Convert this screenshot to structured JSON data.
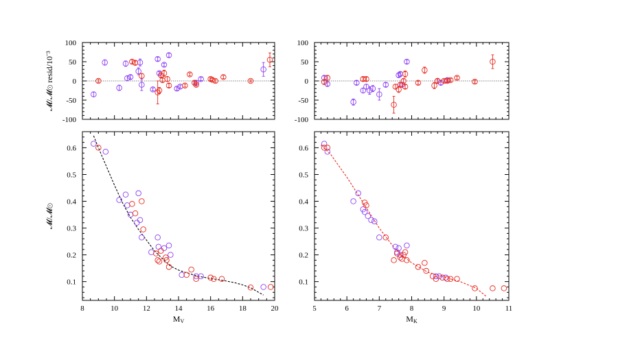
{
  "chart_data": [
    {
      "id": "resid_v",
      "type": "scatter",
      "title": "",
      "xlabel": "",
      "ylabel": "𝓜/𝓜⊙ resid/10⁻³",
      "xlim": [
        8,
        20
      ],
      "ylim": [
        -100,
        100
      ],
      "yticks": [
        100,
        50,
        0,
        -50,
        -100
      ],
      "xticks": [
        8,
        10,
        12,
        14,
        16,
        18,
        20
      ],
      "show_x_ticklabels": false,
      "zero_line": true,
      "series": [
        {
          "name": "purple",
          "color": "#8a3ff5",
          "points": [
            [
              8.7,
              -35,
              6
            ],
            [
              9.4,
              48,
              7
            ],
            [
              10.3,
              -18,
              7
            ],
            [
              10.7,
              45,
              7
            ],
            [
              10.8,
              7,
              6
            ],
            [
              11.0,
              10,
              5
            ],
            [
              11.5,
              25,
              9
            ],
            [
              11.6,
              48,
              9
            ],
            [
              11.7,
              -10,
              15
            ],
            [
              12.4,
              -22,
              4
            ],
            [
              12.7,
              57,
              5
            ],
            [
              12.8,
              20,
              4
            ],
            [
              13.1,
              42,
              4
            ],
            [
              13.4,
              67,
              5
            ],
            [
              13.9,
              -20,
              4
            ],
            [
              14.1,
              -15,
              4
            ],
            [
              15.1,
              -5,
              5
            ],
            [
              15.4,
              5,
              4
            ],
            [
              19.3,
              30,
              18
            ]
          ]
        },
        {
          "name": "red",
          "color": "#e8281e",
          "points": [
            [
              9.0,
              0,
              4
            ],
            [
              11.1,
              50,
              5
            ],
            [
              11.3,
              47,
              5
            ],
            [
              11.7,
              13,
              6
            ],
            [
              12.7,
              -30,
              30
            ],
            [
              12.8,
              -25,
              8
            ],
            [
              12.9,
              15,
              5
            ],
            [
              13.0,
              2,
              5
            ],
            [
              13.1,
              20,
              8
            ],
            [
              13.3,
              5,
              6
            ],
            [
              13.4,
              -12,
              5
            ],
            [
              14.4,
              -12,
              4
            ],
            [
              14.7,
              17,
              4
            ],
            [
              15.0,
              -5,
              4
            ],
            [
              15.1,
              -10,
              4
            ],
            [
              16.0,
              5,
              4
            ],
            [
              16.1,
              3,
              4
            ],
            [
              16.3,
              0,
              4
            ],
            [
              16.8,
              10,
              4
            ],
            [
              18.5,
              0,
              3
            ],
            [
              19.7,
              55,
              18
            ]
          ]
        }
      ]
    },
    {
      "id": "resid_k",
      "type": "scatter",
      "title": "",
      "xlabel": "",
      "ylabel": "",
      "xlim": [
        5,
        11
      ],
      "ylim": [
        -100,
        100
      ],
      "yticks": [
        100,
        50,
        0,
        -50,
        -100
      ],
      "xticks": [
        5,
        6,
        7,
        8,
        9,
        10,
        11
      ],
      "show_x_ticklabels": false,
      "zero_line": true,
      "series": [
        {
          "name": "purple",
          "color": "#8a3ff5",
          "points": [
            [
              5.3,
              8,
              5
            ],
            [
              5.4,
              -8,
              5
            ],
            [
              6.2,
              -55,
              8
            ],
            [
              6.3,
              -5,
              5
            ],
            [
              6.5,
              -25,
              6
            ],
            [
              6.6,
              -15,
              6
            ],
            [
              6.7,
              -25,
              10
            ],
            [
              6.8,
              -20,
              8
            ],
            [
              7.0,
              -35,
              15
            ],
            [
              7.2,
              -10,
              5
            ],
            [
              7.6,
              15,
              5
            ],
            [
              7.65,
              18,
              5
            ],
            [
              7.7,
              -10,
              5
            ],
            [
              7.85,
              50,
              5
            ],
            [
              8.8,
              0,
              5
            ],
            [
              8.9,
              -5,
              5
            ],
            [
              9.1,
              2,
              5
            ]
          ]
        },
        {
          "name": "red",
          "color": "#e8281e",
          "points": [
            [
              5.3,
              -3,
              5
            ],
            [
              5.4,
              8,
              6
            ],
            [
              6.5,
              5,
              5
            ],
            [
              6.6,
              5,
              5
            ],
            [
              7.45,
              -62,
              22
            ],
            [
              7.5,
              -15,
              6
            ],
            [
              7.6,
              -22,
              8
            ],
            [
              7.65,
              -10,
              5
            ],
            [
              7.75,
              0,
              5
            ],
            [
              7.8,
              18,
              8
            ],
            [
              7.8,
              -15,
              5
            ],
            [
              8.2,
              -5,
              4
            ],
            [
              8.4,
              28,
              8
            ],
            [
              8.7,
              -12,
              8
            ],
            [
              8.8,
              0,
              5
            ],
            [
              9.0,
              0,
              4
            ],
            [
              9.1,
              0,
              4
            ],
            [
              9.2,
              2,
              4
            ],
            [
              9.4,
              8,
              4
            ],
            [
              9.95,
              -2,
              4
            ],
            [
              10.5,
              50,
              18
            ]
          ]
        }
      ]
    },
    {
      "id": "mass_v",
      "type": "scatter",
      "title": "",
      "xlabel": "Mv",
      "ylabel": "𝓜/𝓜⊙",
      "xlim": [
        8,
        20
      ],
      "ylim": [
        0.03,
        0.66
      ],
      "yticks": [
        0.6,
        0.5,
        0.4,
        0.3,
        0.2,
        0.1
      ],
      "xticks": [
        8,
        10,
        12,
        14,
        16,
        18,
        20
      ],
      "show_x_ticklabels": true,
      "curve_color": "#000000",
      "curve": [
        [
          8.7,
          0.645
        ],
        [
          9.0,
          0.6
        ],
        [
          9.5,
          0.53
        ],
        [
          10.0,
          0.46
        ],
        [
          10.5,
          0.395
        ],
        [
          11.0,
          0.34
        ],
        [
          11.5,
          0.295
        ],
        [
          12.0,
          0.255
        ],
        [
          12.5,
          0.215
        ],
        [
          13.0,
          0.185
        ],
        [
          13.5,
          0.158
        ],
        [
          14.0,
          0.143
        ],
        [
          14.5,
          0.133
        ],
        [
          15.0,
          0.124
        ],
        [
          15.5,
          0.117
        ],
        [
          16.0,
          0.112
        ],
        [
          16.5,
          0.107
        ],
        [
          17.0,
          0.102
        ],
        [
          17.5,
          0.096
        ],
        [
          18.0,
          0.088
        ],
        [
          18.5,
          0.077
        ],
        [
          19.0,
          0.06
        ],
        [
          19.3,
          0.05
        ]
      ],
      "series": [
        {
          "name": "purple",
          "color": "#8a3ff5",
          "points": [
            [
              8.7,
              0.615
            ],
            [
              9.45,
              0.585
            ],
            [
              10.3,
              0.405
            ],
            [
              10.7,
              0.425
            ],
            [
              10.8,
              0.385
            ],
            [
              11.0,
              0.35
            ],
            [
              11.4,
              0.32
            ],
            [
              11.5,
              0.43
            ],
            [
              11.6,
              0.33
            ],
            [
              11.7,
              0.265
            ],
            [
              12.3,
              0.21
            ],
            [
              12.7,
              0.265
            ],
            [
              12.75,
              0.23
            ],
            [
              13.1,
              0.225
            ],
            [
              13.4,
              0.235
            ],
            [
              13.5,
              0.2
            ],
            [
              14.2,
              0.125
            ],
            [
              15.1,
              0.12
            ],
            [
              15.4,
              0.12
            ],
            [
              19.3,
              0.08
            ]
          ]
        },
        {
          "name": "red",
          "color": "#e8281e",
          "points": [
            [
              9.0,
              0.6
            ],
            [
              11.1,
              0.39
            ],
            [
              11.3,
              0.355
            ],
            [
              11.7,
              0.4
            ],
            [
              11.8,
              0.295
            ],
            [
              12.6,
              0.205
            ],
            [
              12.7,
              0.18
            ],
            [
              12.8,
              0.175
            ],
            [
              12.9,
              0.215
            ],
            [
              13.2,
              0.19
            ],
            [
              13.25,
              0.18
            ],
            [
              13.4,
              0.155
            ],
            [
              14.5,
              0.125
            ],
            [
              14.8,
              0.145
            ],
            [
              15.1,
              0.11
            ],
            [
              16.0,
              0.115
            ],
            [
              16.2,
              0.11
            ],
            [
              16.7,
              0.11
            ],
            [
              18.5,
              0.078
            ],
            [
              19.75,
              0.08
            ]
          ]
        }
      ]
    },
    {
      "id": "mass_k",
      "type": "scatter",
      "title": "",
      "xlabel": "Mk",
      "ylabel": "",
      "xlim": [
        5,
        11
      ],
      "ylim": [
        0.03,
        0.66
      ],
      "yticks": [
        0.6,
        0.5,
        0.4,
        0.3,
        0.2,
        0.1
      ],
      "xticks": [
        5,
        6,
        7,
        8,
        9,
        10,
        11
      ],
      "show_x_ticklabels": true,
      "curve_color": "#e8281e",
      "curve": [
        [
          5.2,
          0.61
        ],
        [
          5.5,
          0.575
        ],
        [
          6.0,
          0.49
        ],
        [
          6.5,
          0.395
        ],
        [
          7.0,
          0.3
        ],
        [
          7.5,
          0.22
        ],
        [
          8.0,
          0.17
        ],
        [
          8.5,
          0.135
        ],
        [
          9.0,
          0.117
        ],
        [
          9.5,
          0.1
        ],
        [
          10.0,
          0.075
        ],
        [
          10.3,
          0.045
        ]
      ],
      "series": [
        {
          "name": "purple",
          "color": "#8a3ff5",
          "points": [
            [
              5.3,
              0.615
            ],
            [
              5.4,
              0.585
            ],
            [
              6.2,
              0.4
            ],
            [
              6.35,
              0.43
            ],
            [
              6.5,
              0.37
            ],
            [
              6.55,
              0.36
            ],
            [
              6.65,
              0.345
            ],
            [
              6.75,
              0.33
            ],
            [
              6.85,
              0.325
            ],
            [
              7.0,
              0.265
            ],
            [
              7.5,
              0.23
            ],
            [
              7.55,
              0.21
            ],
            [
              7.6,
              0.225
            ],
            [
              7.65,
              0.2
            ],
            [
              7.85,
              0.235
            ],
            [
              8.75,
              0.12
            ],
            [
              8.85,
              0.12
            ],
            [
              9.05,
              0.115
            ]
          ]
        },
        {
          "name": "red",
          "color": "#e8281e",
          "points": [
            [
              5.3,
              0.6
            ],
            [
              5.4,
              0.6
            ],
            [
              6.55,
              0.395
            ],
            [
              6.6,
              0.385
            ],
            [
              7.2,
              0.265
            ],
            [
              7.45,
              0.18
            ],
            [
              7.55,
              0.205
            ],
            [
              7.65,
              0.19
            ],
            [
              7.7,
              0.185
            ],
            [
              7.75,
              0.2
            ],
            [
              7.8,
              0.21
            ],
            [
              7.85,
              0.18
            ],
            [
              8.2,
              0.155
            ],
            [
              8.4,
              0.17
            ],
            [
              8.45,
              0.14
            ],
            [
              8.65,
              0.12
            ],
            [
              8.75,
              0.11
            ],
            [
              8.95,
              0.115
            ],
            [
              9.1,
              0.11
            ],
            [
              9.2,
              0.11
            ],
            [
              9.4,
              0.11
            ],
            [
              9.95,
              0.075
            ],
            [
              10.5,
              0.075
            ],
            [
              10.85,
              0.075
            ]
          ]
        }
      ]
    }
  ]
}
